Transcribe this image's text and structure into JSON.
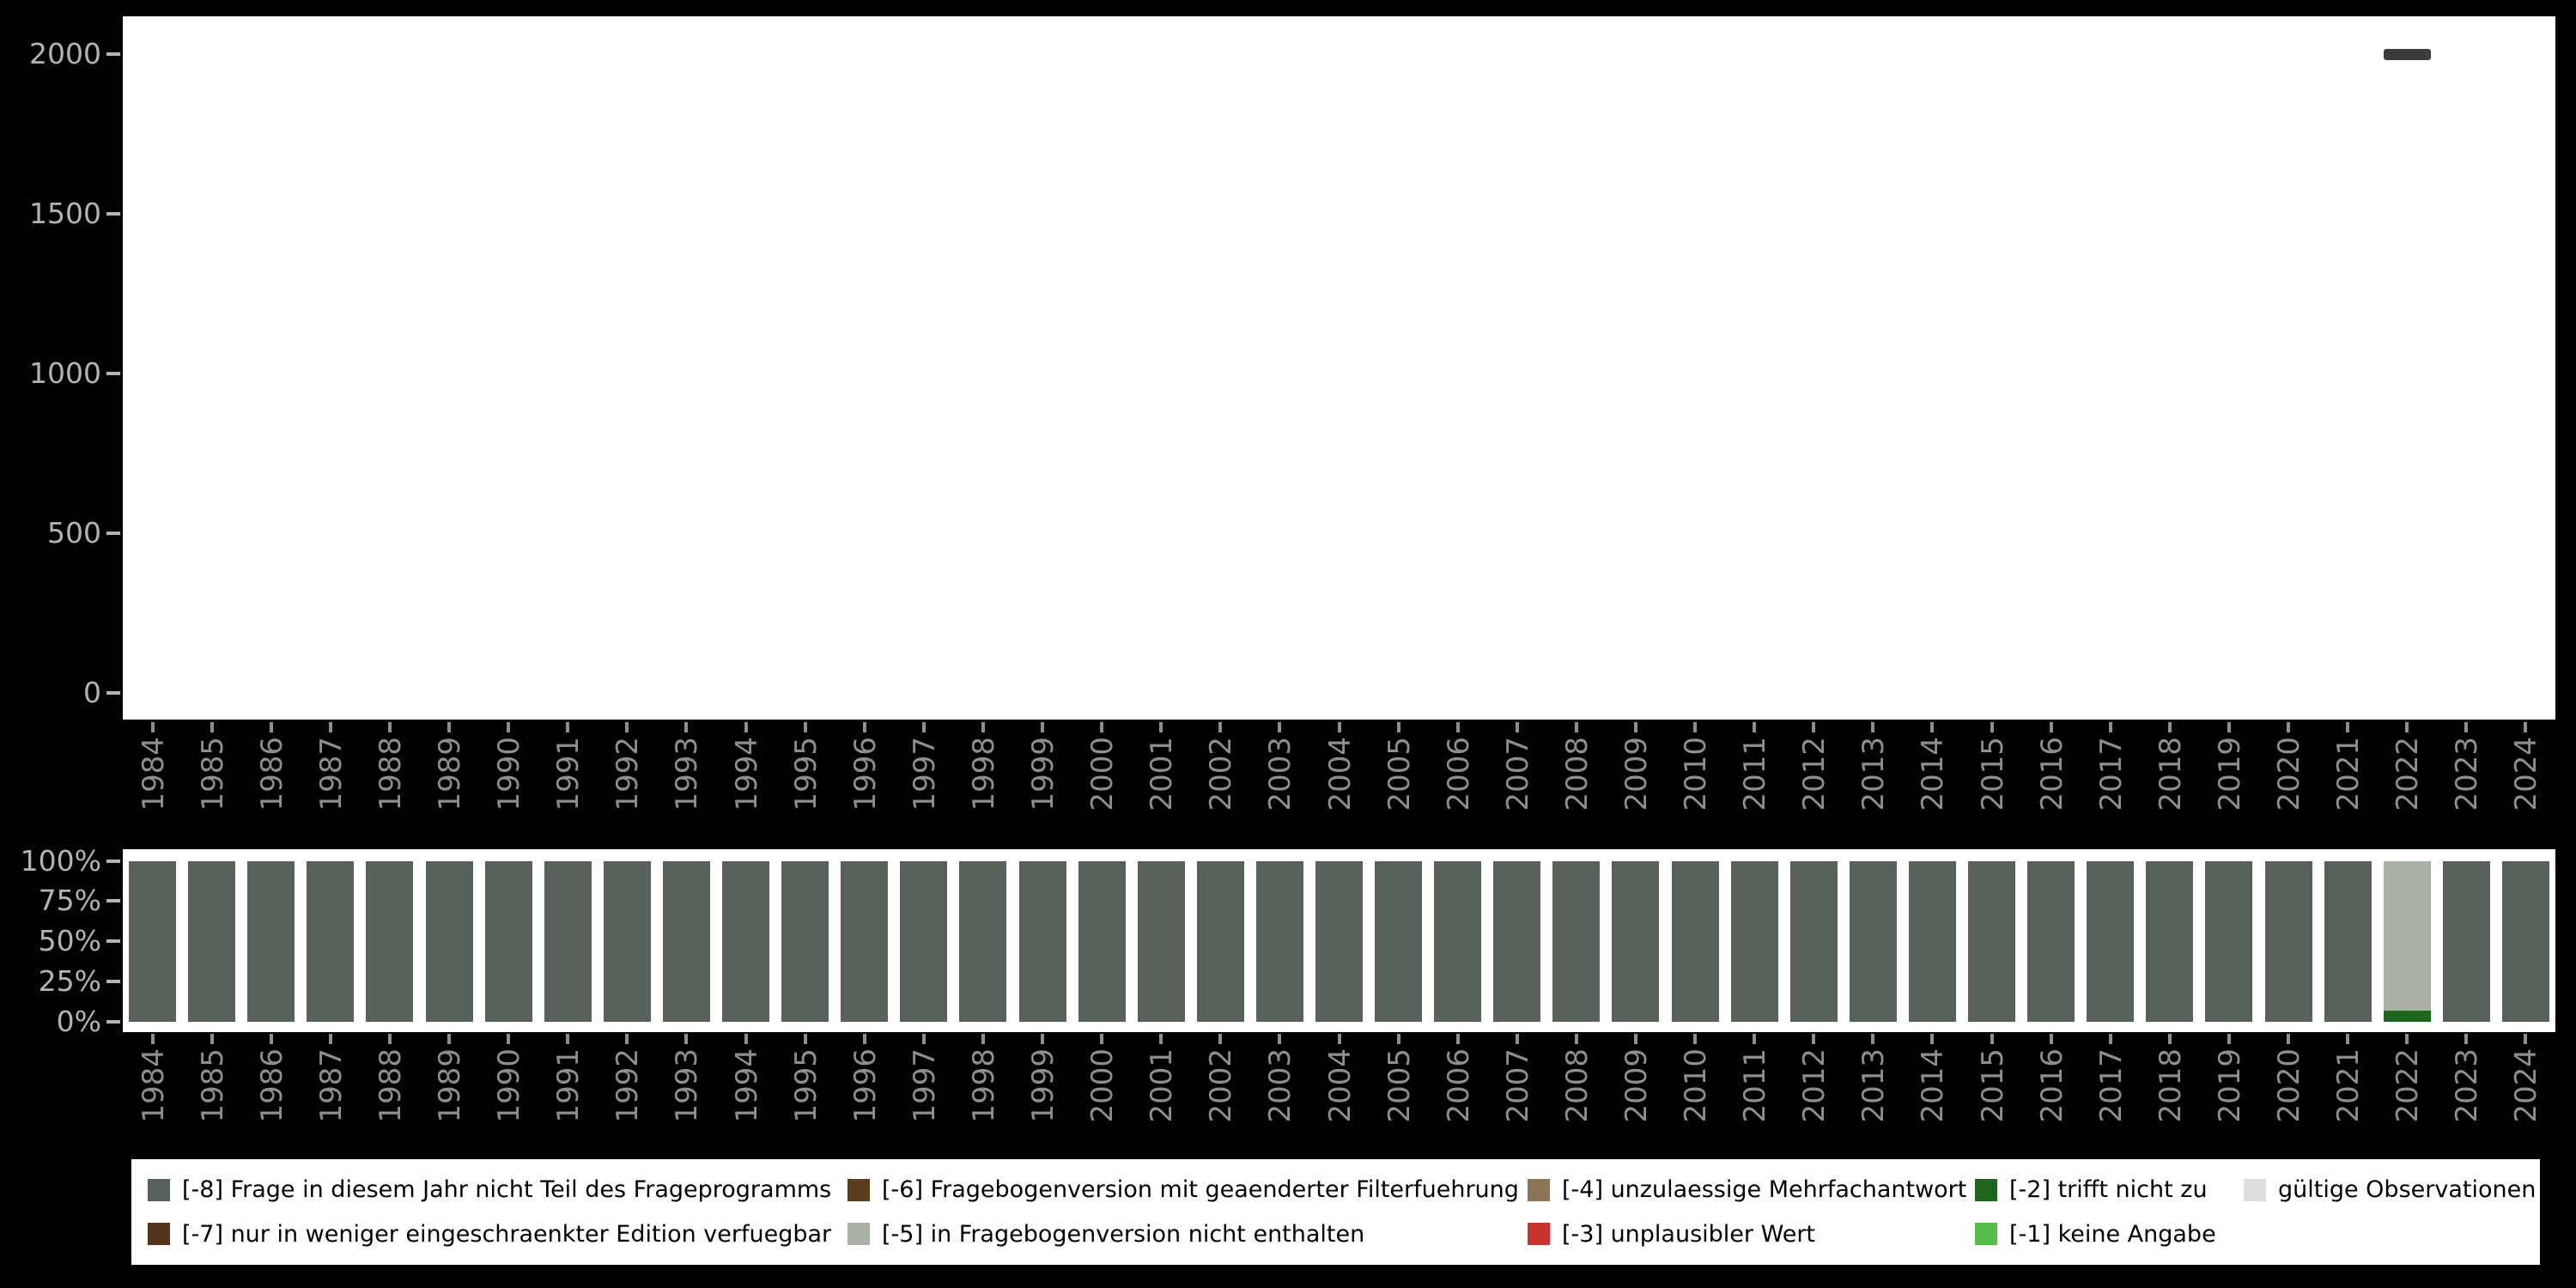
{
  "colors": {
    "background": "#000000",
    "plot_background": "#ffffff",
    "y_axis_text": "#b3b3b3",
    "x_axis_text": "#8e8e8e",
    "marker_dash": "#3c3c3c",
    "legend_background": "#ffffff",
    "legend_text": "#000000"
  },
  "legend": {
    "items": [
      {
        "label": "[-8] Frage in diesem Jahr nicht Teil des Frageprogramms",
        "color": "#59625a"
      },
      {
        "label": "[-6] Fragebogenversion mit geaenderter Filterfuehrung",
        "color": "#5e3c1e"
      },
      {
        "label": "[-4] unzulaessige Mehrfachantwort",
        "color": "#8c7556"
      },
      {
        "label": "[-2] trifft nicht zu",
        "color": "#1e661e"
      },
      {
        "label": "gültige Observationen",
        "color": "#dddddd"
      },
      {
        "label": "[-7] nur in weniger eingeschraenkter Edition verfuegbar",
        "color": "#53331a"
      },
      {
        "label": "[-5] in Fragebogenversion nicht enthalten",
        "color": "#a9b0a4"
      },
      {
        "label": "[-3] unplausibler Wert",
        "color": "#c8332e"
      },
      {
        "label": "[-1] keine Angabe",
        "color": "#56bd49"
      }
    ]
  },
  "chart_data": [
    {
      "type": "scatter",
      "marker": "dash",
      "title": "",
      "xlabel": "",
      "ylabel": "",
      "grid": false,
      "categories": [
        1984,
        1985,
        1986,
        1987,
        1988,
        1989,
        1990,
        1991,
        1992,
        1993,
        1994,
        1995,
        1996,
        1997,
        1998,
        1999,
        2000,
        2001,
        2002,
        2003,
        2004,
        2005,
        2006,
        2007,
        2008,
        2009,
        2010,
        2011,
        2012,
        2013,
        2014,
        2015,
        2016,
        2017,
        2018,
        2019,
        2020,
        2021,
        2022,
        2023,
        2024
      ],
      "yticks": [
        0,
        500,
        1000,
        1500,
        2000
      ],
      "ylim": [
        0,
        2000
      ],
      "points": [
        {
          "x": 2022,
          "y": 2000
        }
      ]
    },
    {
      "type": "bar",
      "stacked": true,
      "unit": "percent",
      "title": "",
      "xlabel": "",
      "ylabel": "",
      "grid": false,
      "legend_position": "bottom",
      "categories": [
        1984,
        1985,
        1986,
        1987,
        1988,
        1989,
        1990,
        1991,
        1992,
        1993,
        1994,
        1995,
        1996,
        1997,
        1998,
        1999,
        2000,
        2001,
        2002,
        2003,
        2004,
        2005,
        2006,
        2007,
        2008,
        2009,
        2010,
        2011,
        2012,
        2013,
        2014,
        2015,
        2016,
        2017,
        2018,
        2019,
        2020,
        2021,
        2022,
        2023,
        2024
      ],
      "yticks_percent": [
        0,
        25,
        50,
        75,
        100
      ],
      "ylim": [
        0,
        100
      ],
      "series": [
        {
          "name": "[-2] trifft nicht zu",
          "color": "#1e661e",
          "values": [
            0,
            0,
            0,
            0,
            0,
            0,
            0,
            0,
            0,
            0,
            0,
            0,
            0,
            0,
            0,
            0,
            0,
            0,
            0,
            0,
            0,
            0,
            0,
            0,
            0,
            0,
            0,
            0,
            0,
            0,
            0,
            0,
            0,
            0,
            0,
            0,
            0,
            0,
            7,
            0,
            0
          ]
        },
        {
          "name": "[-5] in Fragebogenversion nicht enthalten",
          "color": "#a9b0a4",
          "values": [
            0,
            0,
            0,
            0,
            0,
            0,
            0,
            0,
            0,
            0,
            0,
            0,
            0,
            0,
            0,
            0,
            0,
            0,
            0,
            0,
            0,
            0,
            0,
            0,
            0,
            0,
            0,
            0,
            0,
            0,
            0,
            0,
            0,
            0,
            0,
            0,
            0,
            0,
            93,
            0,
            0
          ]
        },
        {
          "name": "[-8] Frage in diesem Jahr nicht Teil des Frageprogramms",
          "color": "#59625a",
          "values": [
            100,
            100,
            100,
            100,
            100,
            100,
            100,
            100,
            100,
            100,
            100,
            100,
            100,
            100,
            100,
            100,
            100,
            100,
            100,
            100,
            100,
            100,
            100,
            100,
            100,
            100,
            100,
            100,
            100,
            100,
            100,
            100,
            100,
            100,
            100,
            100,
            100,
            100,
            0,
            100,
            100
          ]
        }
      ]
    }
  ]
}
